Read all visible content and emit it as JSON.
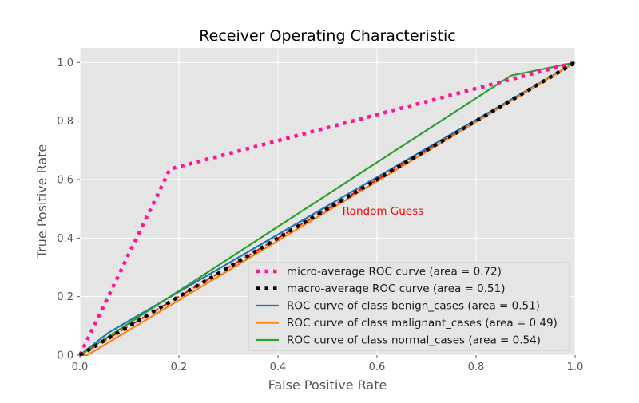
{
  "chart_data": {
    "type": "line",
    "title": "Receiver Operating Characteristic",
    "xlabel": "False Positive Rate",
    "ylabel": "True Positive Rate",
    "xlim": [
      0.0,
      1.0
    ],
    "ylim": [
      0.0,
      1.05
    ],
    "xticks": [
      "0.0",
      "0.2",
      "0.4",
      "0.6",
      "0.8",
      "1.0"
    ],
    "yticks": [
      "0.0",
      "0.2",
      "0.4",
      "0.6",
      "0.8",
      "1.0"
    ],
    "grid": true,
    "legend_position": "lower-right",
    "annotation": {
      "text": "Random Guess",
      "x": 0.53,
      "y": 0.48,
      "color": "#ff0000"
    },
    "reference_line": {
      "x": [
        0,
        1
      ],
      "y": [
        0,
        1
      ],
      "color": "#ff0000",
      "style": "dashed"
    },
    "series": [
      {
        "name": "micro-average ROC curve (area = 0.72)",
        "color": "#ff1493",
        "style": "dotted",
        "x": [
          0.0,
          0.182,
          1.0
        ],
        "y": [
          0.0,
          0.636,
          1.0
        ]
      },
      {
        "name": "macro-average ROC curve (area = 0.51)",
        "color": "#000000",
        "style": "dotted",
        "x": [
          0.0,
          1.0
        ],
        "y": [
          0.0,
          1.0
        ]
      },
      {
        "name": "ROC curve of class benign_cases (area = 0.51)",
        "color": "#1f77b4",
        "style": "solid",
        "x": [
          0.0,
          0.058,
          1.0
        ],
        "y": [
          0.0,
          0.077,
          1.0
        ]
      },
      {
        "name": "ROC curve of class malignant_cases (area = 0.49)",
        "color": "#ff7f0e",
        "style": "solid",
        "x": [
          0.0,
          0.015,
          1.0
        ],
        "y": [
          0.0,
          0.0,
          1.0
        ]
      },
      {
        "name": "ROC curve of class normal_cases (area = 0.54)",
        "color": "#2ca02c",
        "style": "solid",
        "x": [
          0.0,
          0.87,
          1.0
        ],
        "y": [
          0.0,
          0.955,
          1.0
        ]
      }
    ]
  }
}
